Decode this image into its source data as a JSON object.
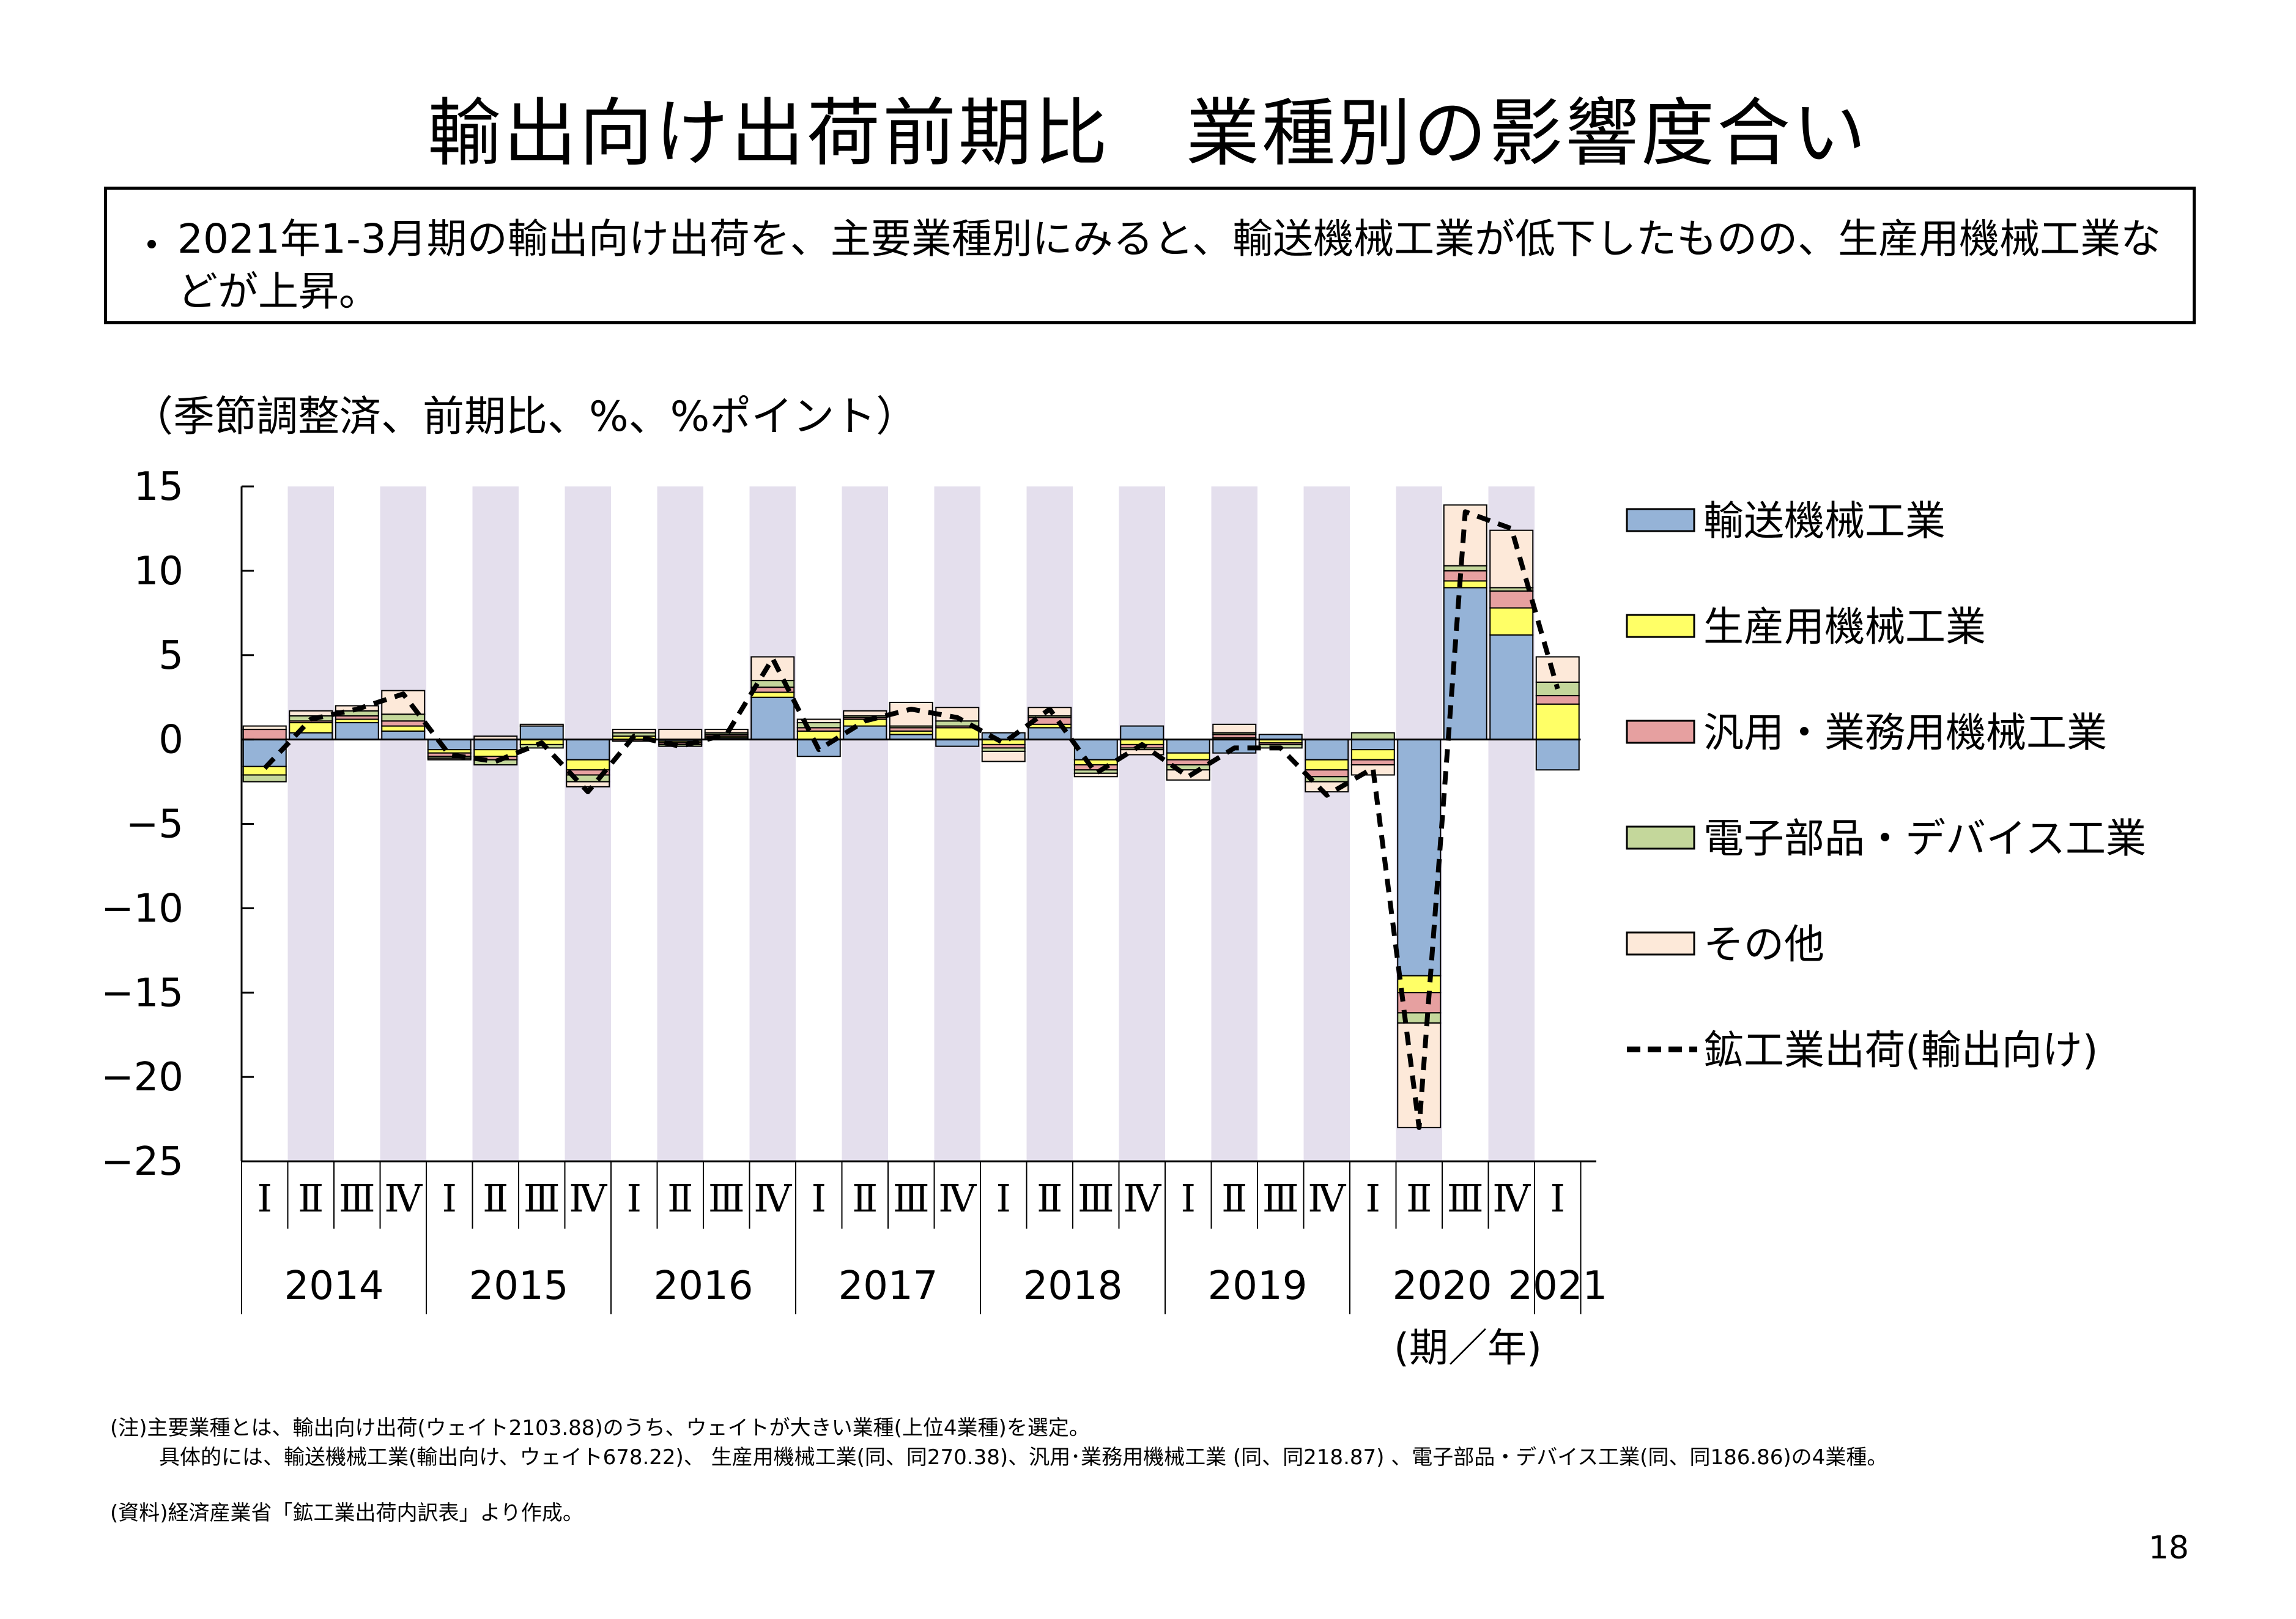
{
  "title": "輸出向け出荷前期比　業種別の影響度合い",
  "summary": {
    "bullet": "・",
    "text": "2021年1-3月期の輸出向け出荷を、主要業種別にみると、輸送機械工業が低下したものの、生産用機械工業などが上昇。"
  },
  "unit_label": "（季節調整済、前期比、%、%ポイント）",
  "x_axis_suffix": "(期／年)",
  "note_line1": "(注)主要業種とは、輸出向け出荷(ウェイト2103.88)のうち、ウェイトが大きい業種(上位4業種)を選定。",
  "note_line2": "具体的には、輸送機械工業(輸出向け、ウェイト678.22)、 生産用機械工業(同、同270.38)、汎用･業務用機械工業 (同、同218.87) 、電子部品・デバイス工業(同、同186.86)の4業種。",
  "source": "(資料)経済産業省「鉱工業出荷内訳表」より作成。",
  "page_number": "18",
  "chart_data": {
    "type": "bar",
    "stacked": true,
    "ylim": [
      -25,
      15
    ],
    "yticks": [
      15,
      10,
      5,
      0,
      -5,
      -10,
      -15,
      -20,
      -25
    ],
    "ytick_labels": [
      "15",
      "10",
      "5",
      "0",
      "−5",
      "−10",
      "−15",
      "−20",
      "−25"
    ],
    "quarter_labels": [
      "Ⅰ",
      "Ⅱ",
      "Ⅲ",
      "Ⅳ",
      "Ⅰ",
      "Ⅱ",
      "Ⅲ",
      "Ⅳ",
      "Ⅰ",
      "Ⅱ",
      "Ⅲ",
      "Ⅳ",
      "Ⅰ",
      "Ⅱ",
      "Ⅲ",
      "Ⅳ",
      "Ⅰ",
      "Ⅱ",
      "Ⅲ",
      "Ⅳ",
      "Ⅰ",
      "Ⅱ",
      "Ⅲ",
      "Ⅳ",
      "Ⅰ",
      "Ⅱ",
      "Ⅲ",
      "Ⅳ",
      "Ⅰ"
    ],
    "years": [
      {
        "label": "2014",
        "start": 0,
        "count": 4
      },
      {
        "label": "2015",
        "start": 4,
        "count": 4
      },
      {
        "label": "2016",
        "start": 8,
        "count": 4
      },
      {
        "label": "2017",
        "start": 12,
        "count": 4
      },
      {
        "label": "2018",
        "start": 16,
        "count": 4
      },
      {
        "label": "2019",
        "start": 20,
        "count": 4
      },
      {
        "label": "2020",
        "start": 24,
        "count": 4
      },
      {
        "label": "2021",
        "start": 28,
        "count": 1
      }
    ],
    "legend_position": "right",
    "series": [
      {
        "name": "輸送機械工業",
        "color": "#95b3d7",
        "values": [
          -1.6,
          0.4,
          1.0,
          0.5,
          -0.6,
          -0.6,
          0.8,
          -1.2,
          0.0,
          -0.1,
          0.1,
          2.5,
          -1.0,
          0.8,
          0.3,
          -0.4,
          0.4,
          0.7,
          -1.2,
          0.8,
          -0.8,
          -0.8,
          0.3,
          -1.2,
          -0.6,
          -14.0,
          9.0,
          6.2,
          -1.8
        ]
      },
      {
        "name": "生産用機械工業",
        "color": "#ffff66",
        "values": [
          -0.5,
          0.6,
          0.2,
          0.3,
          -0.2,
          -0.4,
          -0.3,
          -0.6,
          0.2,
          -0.1,
          0.1,
          0.3,
          0.5,
          0.4,
          0.2,
          0.7,
          -0.3,
          0.2,
          -0.3,
          -0.3,
          -0.4,
          0.1,
          -0.2,
          -0.6,
          -0.6,
          -1.0,
          0.4,
          1.6,
          2.1
        ]
      },
      {
        "name": "汎用・業務用機械工業",
        "color": "#e6a0a0",
        "values": [
          0.6,
          0.1,
          0.2,
          0.3,
          -0.2,
          -0.2,
          0.0,
          -0.3,
          -0.1,
          -0.1,
          0.1,
          0.3,
          0.2,
          0.1,
          0.2,
          0.1,
          -0.2,
          0.4,
          -0.3,
          -0.2,
          -0.3,
          0.2,
          -0.1,
          -0.4,
          -0.3,
          -1.2,
          0.6,
          1.0,
          0.5
        ]
      },
      {
        "name": "電子部品・デバイス工業",
        "color": "#c4d79b",
        "values": [
          -0.4,
          0.3,
          0.3,
          0.4,
          -0.1,
          -0.3,
          -0.2,
          -0.4,
          0.2,
          -0.1,
          0.1,
          0.4,
          0.3,
          0.1,
          0.1,
          0.3,
          -0.2,
          0.1,
          -0.2,
          -0.1,
          -0.3,
          0.1,
          -0.2,
          -0.3,
          0.4,
          -0.6,
          0.3,
          0.2,
          0.8
        ]
      },
      {
        "name": "その他",
        "color": "#fde9d9",
        "values": [
          0.2,
          0.3,
          0.3,
          1.4,
          -0.1,
          0.2,
          0.1,
          -0.3,
          0.2,
          0.6,
          0.2,
          1.4,
          0.2,
          0.3,
          1.4,
          0.8,
          -0.6,
          0.5,
          -0.2,
          -0.3,
          -0.6,
          0.5,
          0.0,
          -0.6,
          -0.6,
          -6.2,
          3.6,
          3.4,
          1.5
        ]
      },
      {
        "name": "鉱工業出荷(輸出向け)",
        "type": "line",
        "color": "#000000",
        "dash": true,
        "values": [
          -1.7,
          1.2,
          1.8,
          2.7,
          -0.9,
          -1.3,
          -0.2,
          -3.1,
          0.2,
          -0.4,
          0.3,
          4.8,
          -0.6,
          1.1,
          1.8,
          1.3,
          -0.2,
          1.8,
          -2.0,
          -0.3,
          -2.2,
          -0.5,
          -0.5,
          -3.3,
          -1.7,
          -23.0,
          13.5,
          12.5,
          3.0
        ]
      }
    ]
  }
}
